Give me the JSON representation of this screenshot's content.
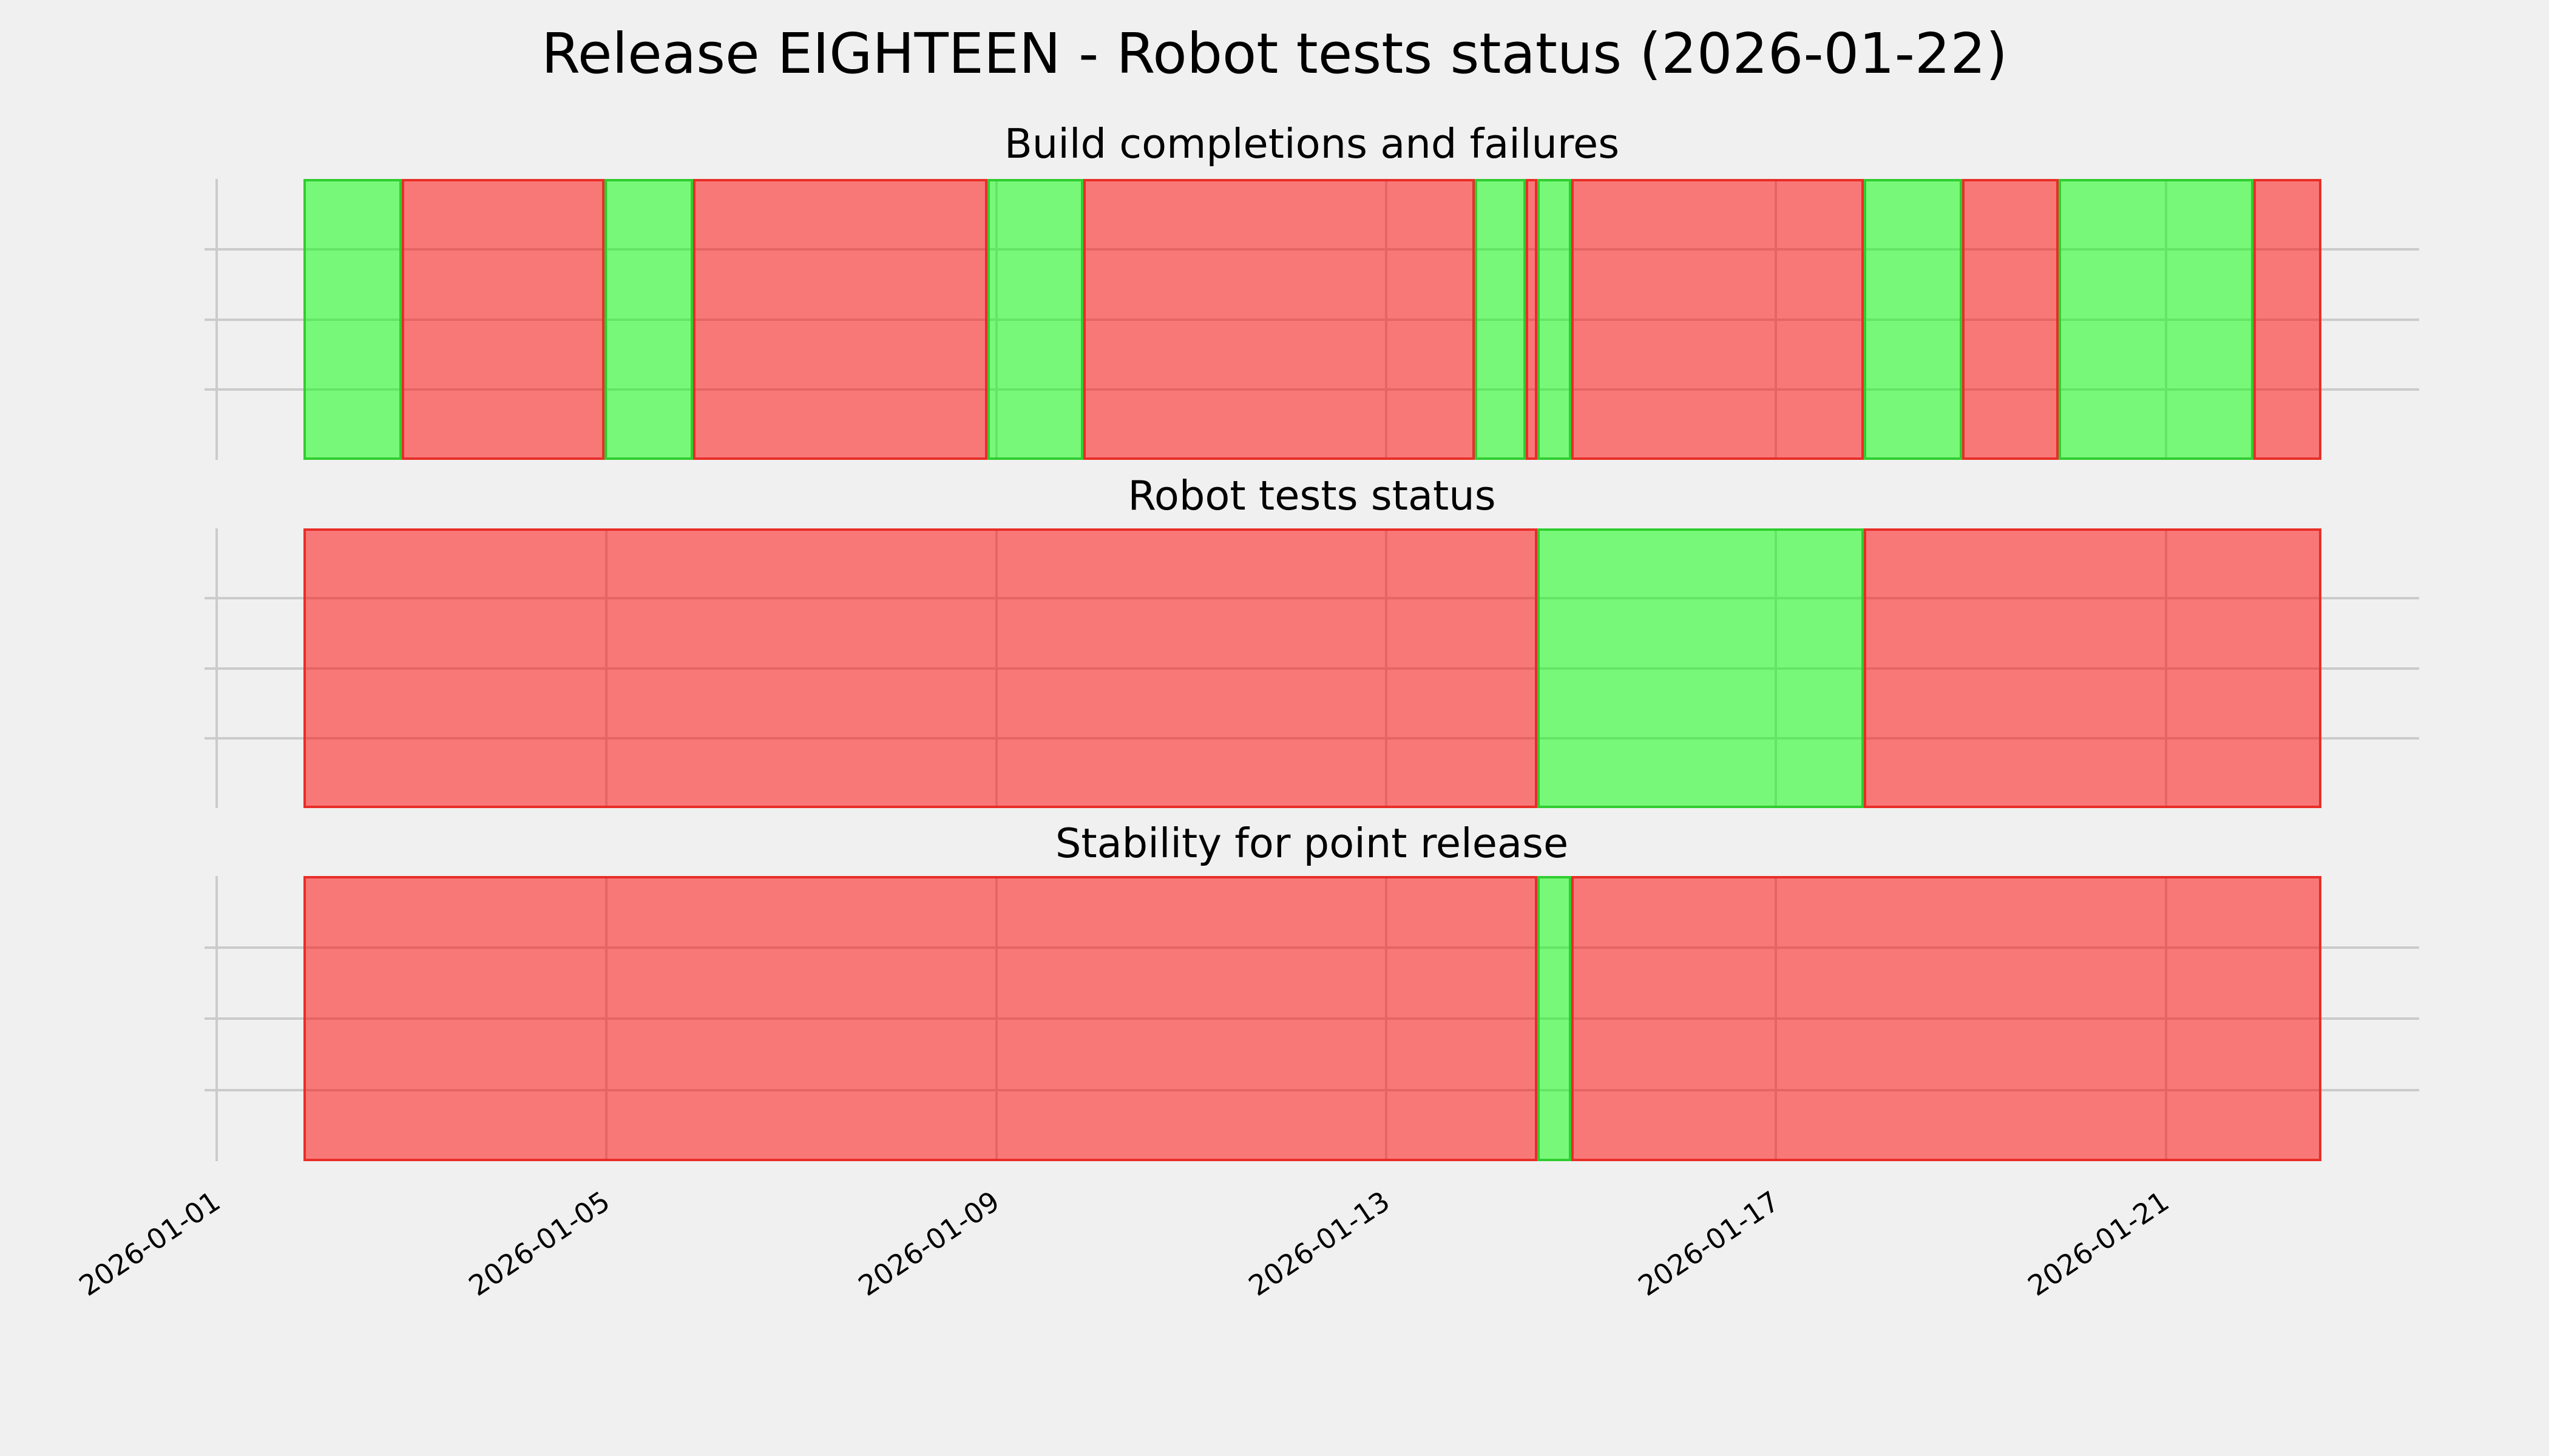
{
  "colors": {
    "figure_background": "#f0f0f0",
    "grid": "#cbcbcb",
    "text": "#000000",
    "pass_fill": "rgba(0, 255, 0, 0.5)",
    "pass_edge": "rgba(40, 200, 40, 0.9)",
    "fail_fill": "rgba(255, 0, 0, 0.5)",
    "fail_edge": "rgba(230, 40, 34, 0.92)",
    "pass_fill_flattened_hex": "#78f778",
    "fail_fill_flattened_hex": "#f77878"
  },
  "chart_data": {
    "type": "bar",
    "subtype": "status-timeline (broken horizontal bars, pass/fail per time range)",
    "title": "Release EIGHTEEN - Robot tests status (2026-01-22)",
    "grid": true,
    "legend": null,
    "x_axis": {
      "epoch": "2026-01-01",
      "tick_labels": [
        "2026-01-01",
        "2026-01-05",
        "2026-01-09",
        "2026-01-13",
        "2026-01-17",
        "2026-01-21"
      ],
      "tick_days": [
        0,
        4,
        8,
        12,
        16,
        20
      ],
      "xlim_days": [
        -0.125,
        22.6
      ],
      "tick_label_rotation_deg": -34
    },
    "y_axis": {
      "tick_labels": [],
      "grid_rows": 4
    },
    "bars_start_day": 0.89,
    "bars_end_day": 21.6,
    "subplots": [
      {
        "title": "Build completions and failures",
        "segments": [
          {
            "start_day": 0.89,
            "end_day": 1.9,
            "status": "pass"
          },
          {
            "start_day": 1.9,
            "end_day": 3.98,
            "status": "fail"
          },
          {
            "start_day": 3.98,
            "end_day": 4.89,
            "status": "pass"
          },
          {
            "start_day": 4.89,
            "end_day": 7.91,
            "status": "fail"
          },
          {
            "start_day": 7.91,
            "end_day": 8.89,
            "status": "pass"
          },
          {
            "start_day": 8.89,
            "end_day": 12.91,
            "status": "fail"
          },
          {
            "start_day": 12.91,
            "end_day": 13.43,
            "status": "pass"
          },
          {
            "start_day": 13.43,
            "end_day": 13.55,
            "status": "fail"
          },
          {
            "start_day": 13.55,
            "end_day": 13.9,
            "status": "pass"
          },
          {
            "start_day": 13.9,
            "end_day": 16.9,
            "status": "fail"
          },
          {
            "start_day": 16.9,
            "end_day": 17.91,
            "status": "pass"
          },
          {
            "start_day": 17.91,
            "end_day": 18.9,
            "status": "fail"
          },
          {
            "start_day": 18.9,
            "end_day": 20.9,
            "status": "pass"
          },
          {
            "start_day": 20.9,
            "end_day": 21.6,
            "status": "fail"
          }
        ]
      },
      {
        "title": "Robot tests status",
        "segments": [
          {
            "start_day": 0.89,
            "end_day": 13.55,
            "status": "fail"
          },
          {
            "start_day": 13.55,
            "end_day": 16.9,
            "status": "pass"
          },
          {
            "start_day": 16.9,
            "end_day": 21.6,
            "status": "fail"
          }
        ]
      },
      {
        "title": "Stability for point release",
        "segments": [
          {
            "start_day": 0.89,
            "end_day": 13.55,
            "status": "fail"
          },
          {
            "start_day": 13.55,
            "end_day": 13.9,
            "status": "pass"
          },
          {
            "start_day": 13.9,
            "end_day": 21.6,
            "status": "fail"
          }
        ]
      }
    ]
  }
}
